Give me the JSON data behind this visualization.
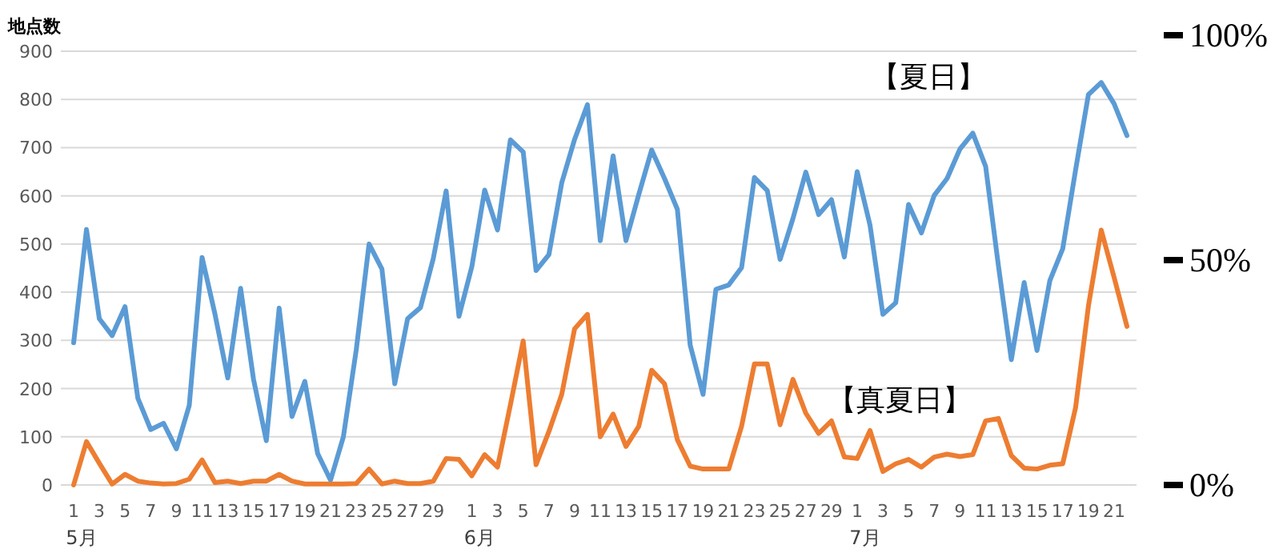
{
  "chart_data": {
    "type": "line",
    "ylabel": "地点数",
    "categories": [
      "1\n5月",
      null,
      "3",
      null,
      "5",
      null,
      "7",
      null,
      "9",
      null,
      "11",
      null,
      "13",
      null,
      "15",
      null,
      "17",
      null,
      "19",
      null,
      "21",
      null,
      "23",
      null,
      "25",
      null,
      "27",
      null,
      "29",
      null,
      null,
      "1\n6月",
      null,
      "3",
      null,
      "5",
      null,
      "7",
      null,
      "9",
      null,
      "11",
      null,
      "13",
      null,
      "15",
      null,
      "17",
      null,
      "19",
      null,
      "21",
      null,
      "23",
      null,
      "25",
      null,
      "27",
      null,
      "29",
      null,
      "1\n7月",
      null,
      "3",
      null,
      "5",
      null,
      "7",
      null,
      "9",
      null,
      "11",
      null,
      "13",
      null,
      "15",
      null,
      "17",
      null,
      "19",
      null,
      "21",
      null
    ],
    "series": [
      {
        "name": "【夏日】",
        "color": "#5b9bd5",
        "values": [
          295,
          530,
          345,
          310,
          370,
          180,
          115,
          128,
          75,
          165,
          472,
          355,
          222,
          408,
          220,
          92,
          367,
          142,
          215,
          65,
          10,
          100,
          280,
          500,
          448,
          210,
          345,
          368,
          470,
          610,
          350,
          453,
          612,
          529,
          716,
          691,
          445,
          478,
          627,
          717,
          789,
          507,
          683,
          507,
          603,
          695,
          636,
          572,
          290,
          188,
          406,
          415,
          451,
          638,
          611,
          468,
          553,
          649,
          561,
          592,
          473,
          650,
          539,
          354,
          378,
          582,
          523,
          601,
          636,
          697,
          730,
          661,
          454,
          260,
          420,
          279,
          424,
          490,
          653,
          810,
          835,
          791,
          725
        ]
      },
      {
        "name": "【真夏日】",
        "color": "#ed7d31",
        "values": [
          0,
          90,
          45,
          2,
          22,
          8,
          4,
          2,
          3,
          12,
          52,
          5,
          8,
          3,
          8,
          8,
          22,
          8,
          2,
          2,
          2,
          2,
          3,
          33,
          2,
          8,
          3,
          3,
          8,
          55,
          53,
          19,
          63,
          37,
          166,
          299,
          42,
          111,
          188,
          324,
          354,
          100,
          147,
          80,
          122,
          238,
          210,
          94,
          39,
          33,
          33,
          33,
          122,
          251,
          251,
          125,
          219,
          149,
          107,
          133,
          58,
          55,
          113,
          28,
          44,
          53,
          37,
          58,
          64,
          59,
          63,
          133,
          138,
          61,
          35,
          33,
          41,
          44,
          160,
          371,
          529,
          431,
          329
        ]
      }
    ],
    "ylim": [
      0,
      900
    ],
    "yticks": [
      0,
      100,
      200,
      300,
      400,
      500,
      600,
      700,
      800,
      900
    ],
    "y2lim": [
      0,
      100
    ],
    "y2ticks": [
      {
        "value": 0,
        "label": "0%"
      },
      {
        "value": 50,
        "label": "50%"
      },
      {
        "value": 100,
        "label": "100%"
      }
    ],
    "grid": "y"
  }
}
